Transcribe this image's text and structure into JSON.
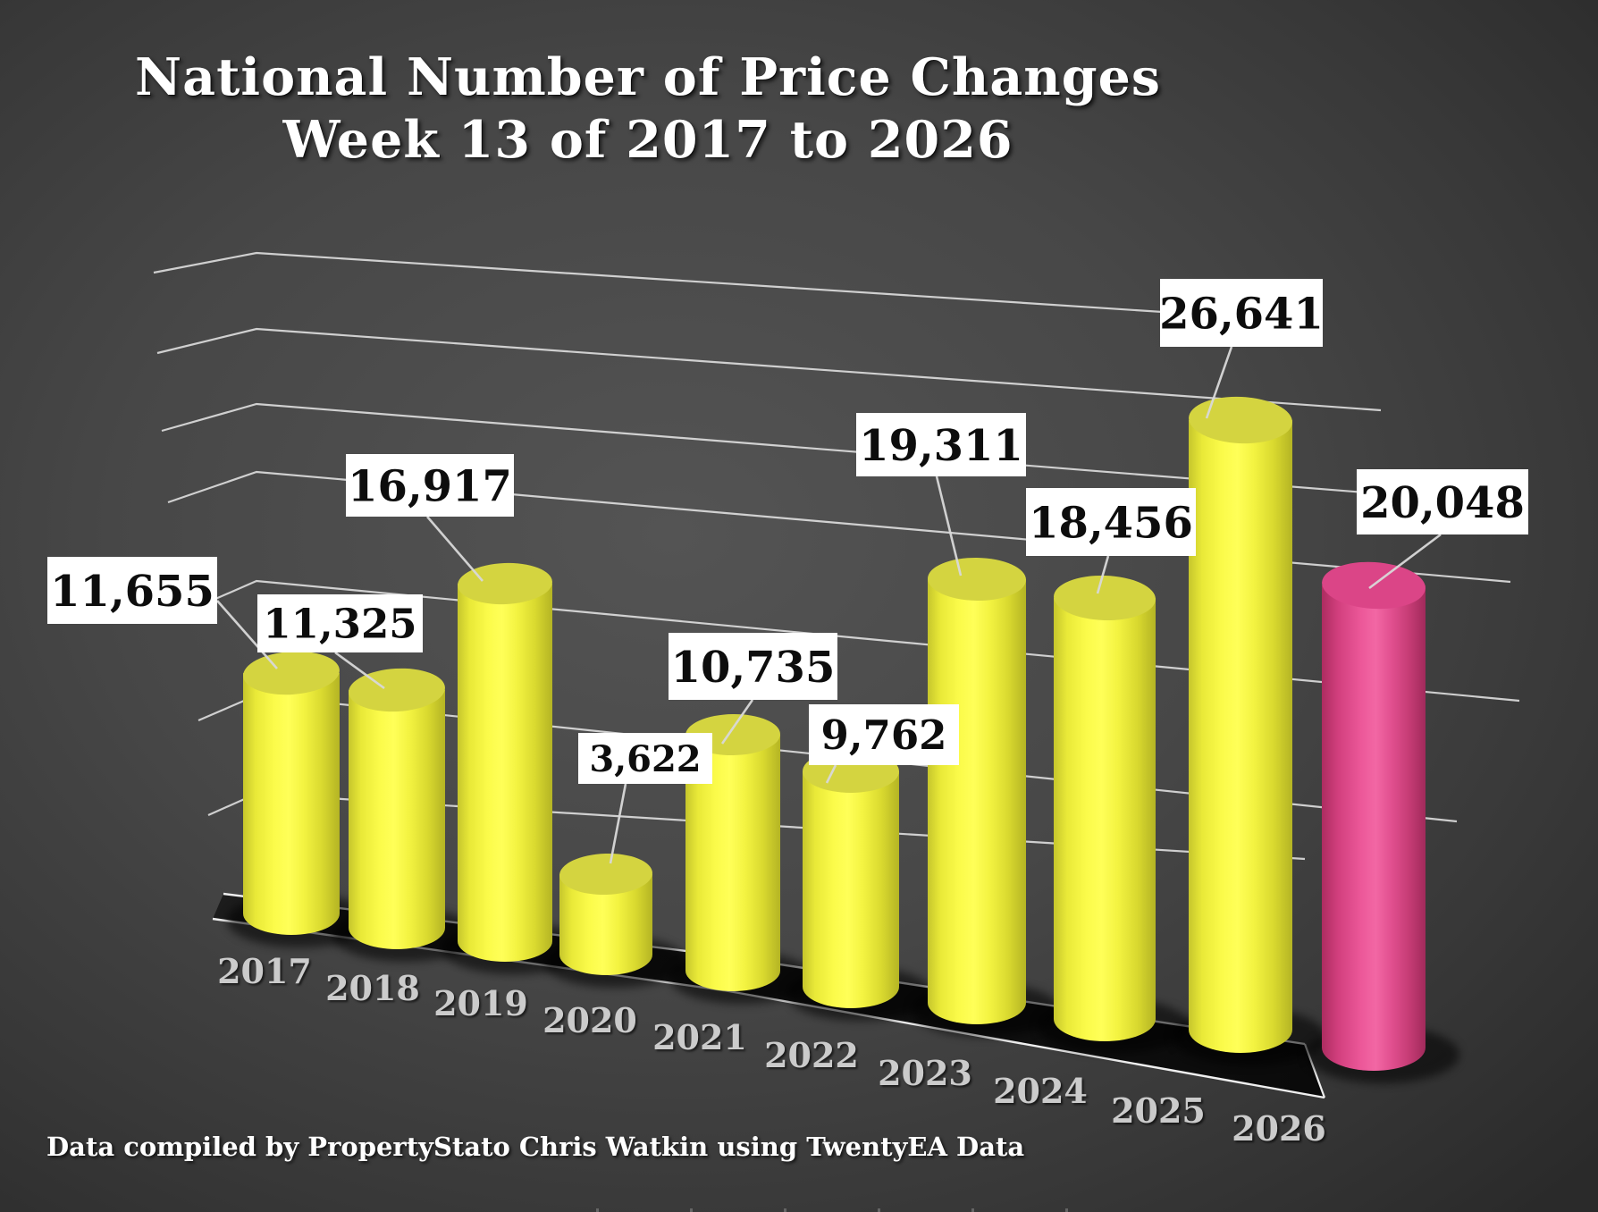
{
  "title": {
    "line1": "National Number of Price Changes",
    "line2": "Week 13 of 2017 to 2026"
  },
  "footer": "Data compiled by PropertyStato Chris Watkin using TwentyEA Data",
  "colors": {
    "bar_default": "#f2f23f",
    "bar_default_top": "#d4d440",
    "bar_highlight": "#e84792",
    "bar_highlight_top": "#db4587",
    "background": "#4a4a4a",
    "gridline": "#e2e2e2",
    "label_box": "#ffffff",
    "label_text": "#0d0d0d",
    "year_text": "#cbcbcb",
    "floor": "#141414"
  },
  "chart_data": {
    "type": "bar",
    "style": "3d-cylinder-perspective",
    "title": "National Number of Price Changes Week 13 of 2017 to 2026",
    "categories": [
      "2017",
      "2018",
      "2019",
      "2020",
      "2021",
      "2022",
      "2023",
      "2024",
      "2025",
      "2026"
    ],
    "values": [
      11655,
      11325,
      16917,
      3622,
      10735,
      9762,
      19311,
      18456,
      26641,
      20048
    ],
    "value_labels": [
      "11,655",
      "11,325",
      "16,917",
      "3,622",
      "10,735",
      "9,762",
      "19,311",
      "18,456",
      "26,641",
      "20,048"
    ],
    "highlighted_category": "2026",
    "series_color": "yellow",
    "highlight_color": "pink",
    "grid": true,
    "legend": "none",
    "data_labels": "white boxes with leader lines",
    "source_note": "Data compiled by PropertyStato Chris Watkin using TwentyEA Data"
  }
}
